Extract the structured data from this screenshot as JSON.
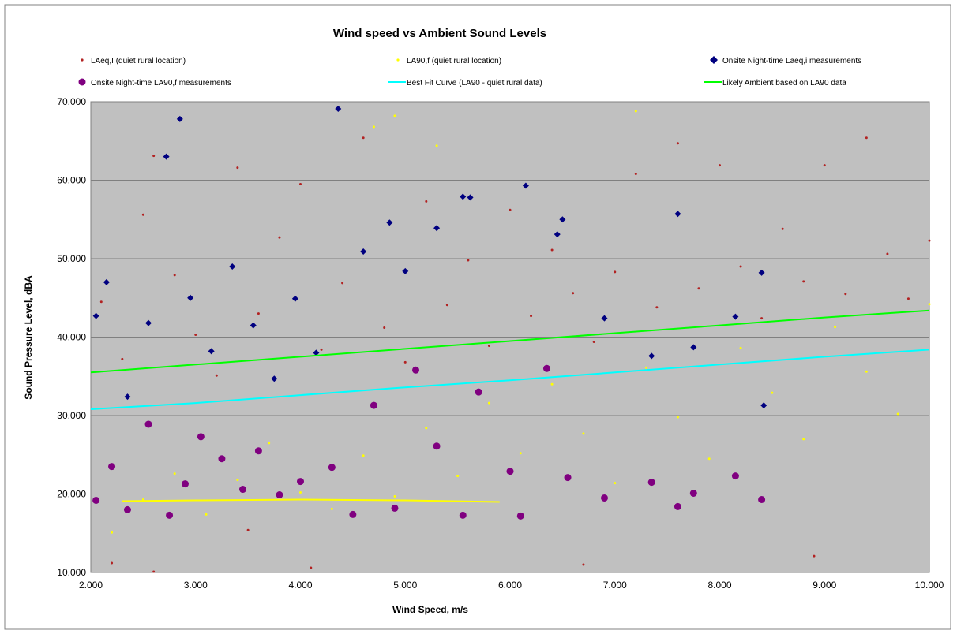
{
  "chart_data": {
    "type": "scatter",
    "title": "Wind speed vs Ambient Sound Levels",
    "xlabel": "Wind Speed, m/s",
    "ylabel": "Sound Pressure Level, dBA",
    "xlim": [
      2,
      10
    ],
    "ylim": [
      10,
      70
    ],
    "x_ticks": [
      "2.000",
      "3.000",
      "4.000",
      "5.000",
      "6.000",
      "7.000",
      "8.000",
      "9.000",
      "10.000"
    ],
    "y_ticks": [
      "10.000",
      "20.000",
      "30.000",
      "40.000",
      "50.000",
      "60.000",
      "70.000"
    ],
    "grid": "horizontal major gridlines",
    "legend_position": "top",
    "plot_background": "#c0c0c0",
    "series": [
      {
        "name": "LAeq,I (quiet rural location)",
        "marker": "small-dot",
        "color": "#b22222",
        "points": [
          [
            2.1,
            44.5
          ],
          [
            2.3,
            37.2
          ],
          [
            2.5,
            55.6
          ],
          [
            2.6,
            63.1
          ],
          [
            2.8,
            47.9
          ],
          [
            3.0,
            40.3
          ],
          [
            3.2,
            35.1
          ],
          [
            3.4,
            61.6
          ],
          [
            3.6,
            43.0
          ],
          [
            3.8,
            52.7
          ],
          [
            4.0,
            59.5
          ],
          [
            4.2,
            38.4
          ],
          [
            4.4,
            46.9
          ],
          [
            4.6,
            65.4
          ],
          [
            4.8,
            41.2
          ],
          [
            5.0,
            36.8
          ],
          [
            5.2,
            57.3
          ],
          [
            5.4,
            44.1
          ],
          [
            5.6,
            49.8
          ],
          [
            5.8,
            38.9
          ],
          [
            6.0,
            56.2
          ],
          [
            6.2,
            42.7
          ],
          [
            6.4,
            51.1
          ],
          [
            6.6,
            45.6
          ],
          [
            6.8,
            39.4
          ],
          [
            7.0,
            48.3
          ],
          [
            7.2,
            60.8
          ],
          [
            7.4,
            43.8
          ],
          [
            7.6,
            64.7
          ],
          [
            7.8,
            46.2
          ],
          [
            8.0,
            61.9
          ],
          [
            8.2,
            49.0
          ],
          [
            8.4,
            42.4
          ],
          [
            8.6,
            53.8
          ],
          [
            8.8,
            47.1
          ],
          [
            9.0,
            61.9
          ],
          [
            9.2,
            45.5
          ],
          [
            9.4,
            65.4
          ],
          [
            9.6,
            50.6
          ],
          [
            9.8,
            44.9
          ],
          [
            10.0,
            52.3
          ],
          [
            2.2,
            11.2
          ],
          [
            3.5,
            15.4
          ],
          [
            4.1,
            10.6
          ],
          [
            6.7,
            11.0
          ],
          [
            8.9,
            12.1
          ],
          [
            2.6,
            10.1
          ]
        ]
      },
      {
        "name": "LA90,f (quiet rural location)",
        "marker": "small-dot",
        "color": "#ffff00",
        "points": [
          [
            2.2,
            15.1
          ],
          [
            2.5,
            19.3
          ],
          [
            2.8,
            22.6
          ],
          [
            3.1,
            17.4
          ],
          [
            3.4,
            21.8
          ],
          [
            3.7,
            26.5
          ],
          [
            4.0,
            20.2
          ],
          [
            4.3,
            18.1
          ],
          [
            4.6,
            24.9
          ],
          [
            4.9,
            19.7
          ],
          [
            5.2,
            28.4
          ],
          [
            5.5,
            22.3
          ],
          [
            5.8,
            31.6
          ],
          [
            6.1,
            25.2
          ],
          [
            6.4,
            34.0
          ],
          [
            6.7,
            27.7
          ],
          [
            7.0,
            21.4
          ],
          [
            7.3,
            36.1
          ],
          [
            7.6,
            29.8
          ],
          [
            7.9,
            24.5
          ],
          [
            8.2,
            38.6
          ],
          [
            8.5,
            32.9
          ],
          [
            8.8,
            27.0
          ],
          [
            9.1,
            41.3
          ],
          [
            9.4,
            35.6
          ],
          [
            9.7,
            30.2
          ],
          [
            10.0,
            44.2
          ],
          [
            4.9,
            68.2
          ],
          [
            7.2,
            68.8
          ],
          [
            4.7,
            66.8
          ],
          [
            5.3,
            64.4
          ]
        ]
      },
      {
        "name": "Onsite Night-time Laeq,i measurements",
        "marker": "diamond",
        "color": "#000080",
        "points": [
          [
            2.05,
            42.7
          ],
          [
            2.15,
            47.0
          ],
          [
            2.35,
            32.4
          ],
          [
            2.55,
            41.8
          ],
          [
            2.72,
            63.0
          ],
          [
            2.85,
            67.8
          ],
          [
            2.95,
            45.0
          ],
          [
            3.15,
            38.2
          ],
          [
            3.35,
            49.0
          ],
          [
            3.55,
            41.5
          ],
          [
            3.75,
            34.7
          ],
          [
            3.95,
            44.9
          ],
          [
            4.15,
            38.0
          ],
          [
            4.36,
            69.1
          ],
          [
            4.6,
            50.9
          ],
          [
            4.85,
            54.6
          ],
          [
            5.0,
            48.4
          ],
          [
            5.3,
            53.9
          ],
          [
            5.55,
            57.9
          ],
          [
            5.62,
            57.8
          ],
          [
            6.15,
            59.3
          ],
          [
            6.45,
            53.1
          ],
          [
            6.5,
            55.0
          ],
          [
            6.9,
            42.4
          ],
          [
            7.35,
            37.6
          ],
          [
            7.6,
            55.7
          ],
          [
            7.75,
            38.7
          ],
          [
            8.15,
            42.6
          ],
          [
            8.4,
            48.2
          ],
          [
            8.42,
            31.3
          ]
        ]
      },
      {
        "name": "Onsite Night-time LA90,f measurements",
        "marker": "large-dot",
        "color": "#800080",
        "points": [
          [
            2.05,
            19.2
          ],
          [
            2.2,
            23.5
          ],
          [
            2.35,
            18.0
          ],
          [
            2.55,
            28.9
          ],
          [
            2.75,
            17.3
          ],
          [
            2.9,
            21.3
          ],
          [
            3.05,
            27.3
          ],
          [
            3.25,
            24.5
          ],
          [
            3.45,
            20.6
          ],
          [
            3.6,
            25.5
          ],
          [
            3.8,
            19.9
          ],
          [
            4.0,
            21.6
          ],
          [
            4.3,
            23.4
          ],
          [
            4.5,
            17.4
          ],
          [
            4.7,
            31.3
          ],
          [
            4.9,
            18.2
          ],
          [
            5.1,
            35.8
          ],
          [
            5.3,
            26.1
          ],
          [
            5.55,
            17.3
          ],
          [
            5.7,
            33.0
          ],
          [
            6.0,
            22.9
          ],
          [
            6.1,
            17.2
          ],
          [
            6.35,
            36.0
          ],
          [
            6.55,
            22.1
          ],
          [
            6.9,
            19.5
          ],
          [
            7.35,
            21.5
          ],
          [
            7.6,
            18.4
          ],
          [
            7.75,
            20.1
          ],
          [
            8.15,
            22.3
          ],
          [
            8.4,
            19.3
          ]
        ]
      },
      {
        "name": "Best Fit Curve (LA90 - quiet rural data)",
        "marker": "line",
        "color": "#00ffff",
        "points": [
          [
            2.0,
            30.8
          ],
          [
            3.0,
            31.6
          ],
          [
            4.0,
            32.6
          ],
          [
            5.0,
            33.6
          ],
          [
            6.0,
            34.5
          ],
          [
            7.0,
            35.5
          ],
          [
            8.0,
            36.5
          ],
          [
            9.0,
            37.5
          ],
          [
            10.0,
            38.4
          ]
        ]
      },
      {
        "name": "Likely Ambient based on LA90 data",
        "marker": "line",
        "color": "#00ff00",
        "points": [
          [
            2.0,
            35.5
          ],
          [
            3.0,
            36.5
          ],
          [
            4.0,
            37.5
          ],
          [
            5.0,
            38.5
          ],
          [
            6.0,
            39.5
          ],
          [
            7.0,
            40.5
          ],
          [
            8.0,
            41.5
          ],
          [
            9.0,
            42.5
          ],
          [
            10.0,
            43.4
          ]
        ]
      },
      {
        "name": "",
        "marker": "line",
        "color": "#ffff00",
        "points": [
          [
            2.3,
            19.1
          ],
          [
            3.0,
            19.2
          ],
          [
            4.0,
            19.3
          ],
          [
            5.0,
            19.2
          ],
          [
            5.9,
            19.0
          ]
        ]
      }
    ]
  }
}
